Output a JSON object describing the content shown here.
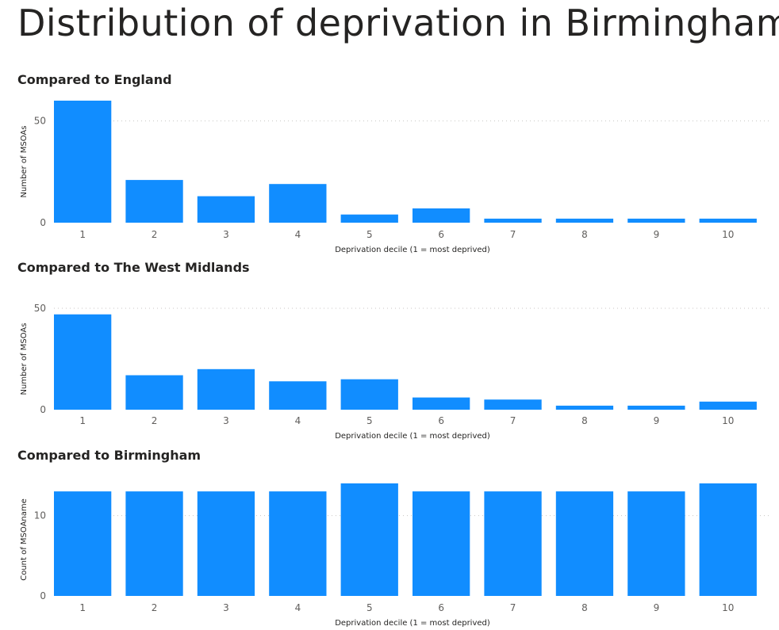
{
  "page": {
    "title": "Distribution of deprivation in Birmingham"
  },
  "colors": {
    "bar": "#118DFF",
    "title_text": "#252423",
    "tick_text": "#605e5c",
    "gridline": "#c8c6c4"
  },
  "chart_data": [
    {
      "type": "bar",
      "title": "Compared to England",
      "categories": [
        "1",
        "2",
        "3",
        "4",
        "5",
        "6",
        "7",
        "8",
        "9",
        "10"
      ],
      "values": [
        60,
        21,
        13,
        19,
        4,
        7,
        2,
        2,
        2,
        2
      ],
      "xlabel": "Deprivation decile (1 = most deprived)",
      "ylabel": "Number of MSOAs",
      "yticks": [
        0,
        50
      ],
      "ylim": [
        0,
        60
      ],
      "grid": true
    },
    {
      "type": "bar",
      "title": "Compared to The West Midlands",
      "categories": [
        "1",
        "2",
        "3",
        "4",
        "5",
        "6",
        "7",
        "8",
        "9",
        "10"
      ],
      "values": [
        47,
        17,
        20,
        14,
        15,
        6,
        5,
        2,
        2,
        4
      ],
      "xlabel": "Deprivation decile (1 = most deprived)",
      "ylabel": "Number of MSOAs",
      "yticks": [
        0,
        50
      ],
      "ylim": [
        0,
        50
      ],
      "grid": true
    },
    {
      "type": "bar",
      "title": "Compared to Birmingham",
      "categories": [
        "1",
        "2",
        "3",
        "4",
        "5",
        "6",
        "7",
        "8",
        "9",
        "10"
      ],
      "values": [
        13,
        13,
        13,
        13,
        14,
        13,
        13,
        13,
        13,
        14
      ],
      "xlabel": "Deprivation decile (1 = most deprived)",
      "ylabel": "Count of MSOAname",
      "yticks": [
        0,
        10
      ],
      "ylim": [
        0,
        14
      ],
      "grid": true
    }
  ]
}
